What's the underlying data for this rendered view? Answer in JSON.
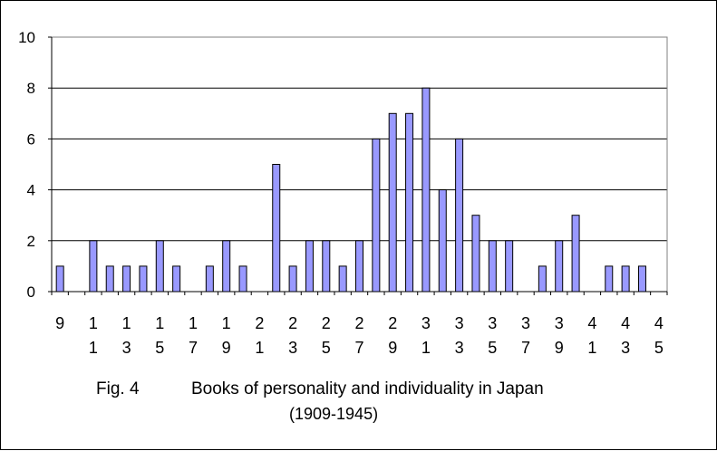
{
  "chart_data": {
    "type": "bar",
    "title": "",
    "xlabel": "",
    "ylabel": "",
    "ylim": [
      0,
      10
    ],
    "yticks": [
      0,
      2,
      4,
      6,
      8,
      10
    ],
    "grid": true,
    "bar_color": "#9999ff",
    "categories": [
      "1909",
      "1910",
      "1911",
      "1912",
      "1913",
      "1914",
      "1915",
      "1916",
      "1917",
      "1918",
      "1919",
      "1920",
      "1921",
      "1922",
      "1923",
      "1924",
      "1925",
      "1926",
      "1927",
      "1928",
      "1929",
      "1930",
      "1931",
      "1932",
      "1933",
      "1934",
      "1935",
      "1936",
      "1937",
      "1938",
      "1939",
      "1940",
      "1941",
      "1942",
      "1943",
      "1944",
      "1945"
    ],
    "values": [
      1,
      0,
      2,
      1,
      1,
      1,
      2,
      1,
      0,
      1,
      2,
      1,
      0,
      5,
      1,
      2,
      2,
      1,
      2,
      6,
      7,
      7,
      8,
      4,
      6,
      3,
      2,
      2,
      0,
      1,
      2,
      3,
      0,
      1,
      1,
      1,
      0
    ],
    "x_tick_labels": [
      {
        "index": 0,
        "lines": [
          "9"
        ]
      },
      {
        "index": 2,
        "lines": [
          "1",
          "1"
        ]
      },
      {
        "index": 4,
        "lines": [
          "1",
          "3"
        ]
      },
      {
        "index": 6,
        "lines": [
          "1",
          "5"
        ]
      },
      {
        "index": 8,
        "lines": [
          "1",
          "7"
        ]
      },
      {
        "index": 10,
        "lines": [
          "1",
          "9"
        ]
      },
      {
        "index": 12,
        "lines": [
          "2",
          "1"
        ]
      },
      {
        "index": 14,
        "lines": [
          "2",
          "3"
        ]
      },
      {
        "index": 16,
        "lines": [
          "2",
          "5"
        ]
      },
      {
        "index": 18,
        "lines": [
          "2",
          "7"
        ]
      },
      {
        "index": 20,
        "lines": [
          "2",
          "9"
        ]
      },
      {
        "index": 22,
        "lines": [
          "3",
          "1"
        ]
      },
      {
        "index": 24,
        "lines": [
          "3",
          "3"
        ]
      },
      {
        "index": 26,
        "lines": [
          "3",
          "5"
        ]
      },
      {
        "index": 28,
        "lines": [
          "3",
          "7"
        ]
      },
      {
        "index": 30,
        "lines": [
          "3",
          "9"
        ]
      },
      {
        "index": 32,
        "lines": [
          "4",
          "1"
        ]
      },
      {
        "index": 34,
        "lines": [
          "4",
          "3"
        ]
      },
      {
        "index": 36,
        "lines": [
          "4",
          "5"
        ]
      }
    ]
  },
  "caption": {
    "fig_label": "Fig. 4",
    "text": "Books of personality and individuality in Japan",
    "range": "(1909-1945)"
  }
}
